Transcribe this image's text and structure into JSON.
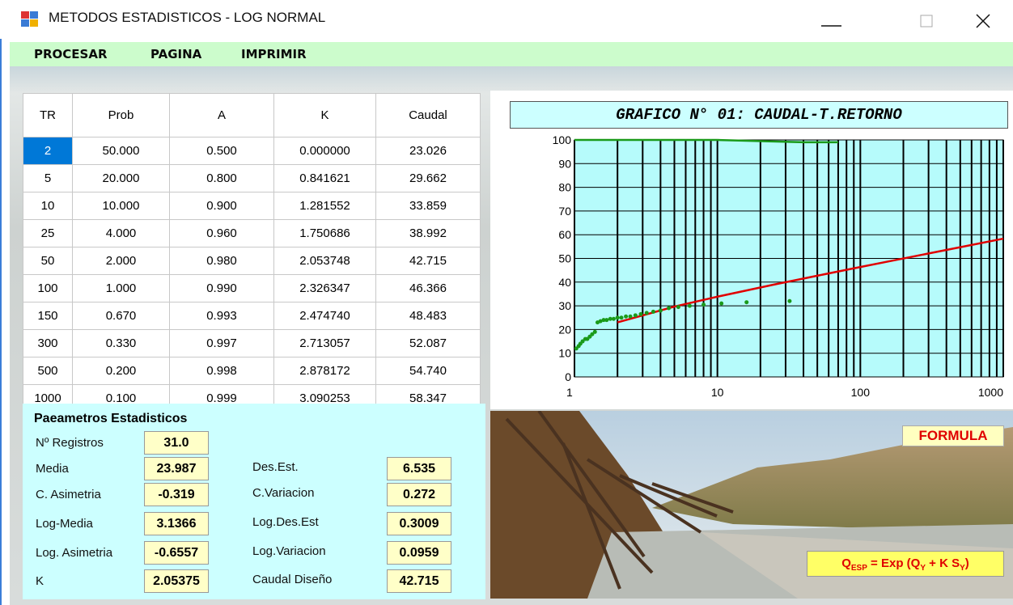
{
  "window": {
    "title": "METODOS ESTADISTICOS - LOG NORMAL"
  },
  "menu": [
    "PROCESAR",
    "PAGINA",
    "IMPRIMIR"
  ],
  "table": {
    "header": [
      "TR",
      "Prob",
      "A",
      "K",
      "Caudal"
    ],
    "selected": [
      0,
      0
    ],
    "rows": [
      [
        "2",
        "50.000",
        "0.500",
        "0.000000",
        "23.026"
      ],
      [
        "5",
        "20.000",
        "0.800",
        "0.841621",
        "29.662"
      ],
      [
        "10",
        "10.000",
        "0.900",
        "1.281552",
        "33.859"
      ],
      [
        "25",
        "4.000",
        "0.960",
        "1.750686",
        "38.992"
      ],
      [
        "50",
        "2.000",
        "0.980",
        "2.053748",
        "42.715"
      ],
      [
        "100",
        "1.000",
        "0.990",
        "2.326347",
        "46.366"
      ],
      [
        "150",
        "0.670",
        "0.993",
        "2.474740",
        "48.483"
      ],
      [
        "300",
        "0.330",
        "0.997",
        "2.713057",
        "52.087"
      ],
      [
        "500",
        "0.200",
        "0.998",
        "2.878172",
        "54.740"
      ],
      [
        "1000",
        "0.100",
        "0.999",
        "3.090253",
        "58.347"
      ]
    ]
  },
  "parameters": {
    "title": "Paeametros Estadisticos",
    "left": [
      {
        "label": "Nº Registros",
        "value": "31.0"
      },
      {
        "label": "Media",
        "value": "23.987"
      },
      {
        "label": "C. Asimetria",
        "value": "-0.319"
      },
      {
        "label": "Log-Media",
        "value": "3.1366"
      },
      {
        "label": "Log. Asimetria",
        "value": "-0.6557"
      },
      {
        "label": "K",
        "value": "2.05375"
      }
    ],
    "right": [
      {
        "label": "Des.Est.",
        "value": "6.535"
      },
      {
        "label": "C.Variacion",
        "value": "0.272"
      },
      {
        "label": "Log.Des.Est",
        "value": "0.3009"
      },
      {
        "label": "Log.Variacion",
        "value": "0.0959"
      },
      {
        "label": "Caudal Diseño",
        "value": "42.715"
      }
    ]
  },
  "chart_data": {
    "type": "line",
    "title": "GRAFICO N° 01: CAUDAL-T.RETORNO",
    "xscale": "log",
    "xlim": [
      1,
      1000
    ],
    "xticks": [
      1,
      10,
      100,
      1000
    ],
    "xminor_ticks": [
      2,
      3,
      4,
      5,
      6,
      7,
      8,
      9,
      20,
      30,
      40,
      50,
      60,
      70,
      80,
      90,
      200,
      300,
      400,
      500,
      600,
      700,
      800,
      900
    ],
    "ylim": [
      0,
      100
    ],
    "yticks": [
      0,
      10,
      20,
      30,
      40,
      50,
      60,
      70,
      80,
      90,
      100
    ],
    "grid": true,
    "background": "#b6fbfb",
    "series": [
      {
        "style": "line",
        "color": "#e00000",
        "x": [
          2,
          5,
          10,
          25,
          50,
          100,
          150,
          300,
          500,
          1000
        ],
        "values": [
          23.026,
          29.662,
          33.859,
          38.992,
          42.715,
          46.366,
          48.483,
          52.087,
          54.74,
          58.347
        ]
      },
      {
        "style": "points",
        "color": "#1a9a1a",
        "x": [
          32,
          16,
          10.67,
          8,
          6.4,
          5.33,
          4.57,
          4,
          3.56,
          3.2,
          2.91,
          2.67,
          2.46,
          2.29,
          2.13,
          2,
          1.88,
          1.78,
          1.68,
          1.6,
          1.52,
          1.45,
          1.39,
          1.33,
          1.28,
          1.23,
          1.19,
          1.14,
          1.1,
          1.07,
          1.03
        ],
        "values": [
          32,
          31.5,
          31,
          30.5,
          30,
          29.5,
          29,
          28,
          27.5,
          27,
          26.5,
          26,
          25.5,
          25.5,
          25,
          25,
          24.5,
          24.5,
          24,
          24,
          23.5,
          23,
          19,
          18,
          17,
          16,
          16,
          15,
          14,
          13,
          12
        ]
      },
      {
        "style": "line",
        "color": "#1a9a1a",
        "x": [
          1,
          10,
          40,
          70
        ],
        "values": [
          100,
          100,
          99,
          99
        ]
      }
    ]
  },
  "photo": {
    "button": "FORMULA",
    "formula": [
      "Q",
      "ESP",
      " = Exp (Q",
      "Y",
      " + K S",
      "Y",
      ")"
    ]
  }
}
